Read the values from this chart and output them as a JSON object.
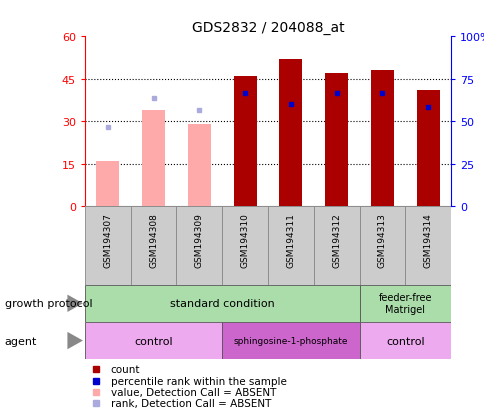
{
  "title": "GDS2832 / 204088_at",
  "samples": [
    "GSM194307",
    "GSM194308",
    "GSM194309",
    "GSM194310",
    "GSM194311",
    "GSM194312",
    "GSM194313",
    "GSM194314"
  ],
  "count_values": [
    null,
    null,
    null,
    46,
    52,
    47,
    48,
    41
  ],
  "count_absent": [
    16,
    34,
    29,
    null,
    null,
    null,
    null,
    null
  ],
  "rank_values": [
    null,
    null,
    null,
    40,
    36,
    40,
    40,
    35
  ],
  "rank_absent": [
    28,
    38,
    34,
    null,
    null,
    null,
    null,
    null
  ],
  "ylim_left": [
    0,
    60
  ],
  "ylim_right": [
    0,
    100
  ],
  "yticks_left": [
    0,
    15,
    30,
    45,
    60
  ],
  "yticks_right": [
    0,
    25,
    50,
    75,
    100
  ],
  "bar_width": 0.5,
  "count_color": "#aa0000",
  "count_absent_color": "#ffaaaa",
  "rank_color": "#0000cc",
  "rank_absent_color": "#aaaadd",
  "grid_color": "black",
  "grid_style": "dotted",
  "grid_ticks": [
    15,
    30,
    45
  ],
  "sample_box_color": "#cccccc",
  "sample_box_edge": "#888888",
  "gp_standard_color": "#aaddaa",
  "gp_feeder_color": "#aaddaa",
  "agent_control_color": "#eeaaee",
  "agent_sphingo_color": "#cc66cc",
  "legend_items": [
    {
      "label": "count",
      "color": "#aa0000",
      "marker": "s"
    },
    {
      "label": "percentile rank within the sample",
      "color": "#0000cc",
      "marker": "s"
    },
    {
      "label": "value, Detection Call = ABSENT",
      "color": "#ffaaaa",
      "marker": "s"
    },
    {
      "label": "rank, Detection Call = ABSENT",
      "color": "#aaaadd",
      "marker": "s"
    }
  ]
}
